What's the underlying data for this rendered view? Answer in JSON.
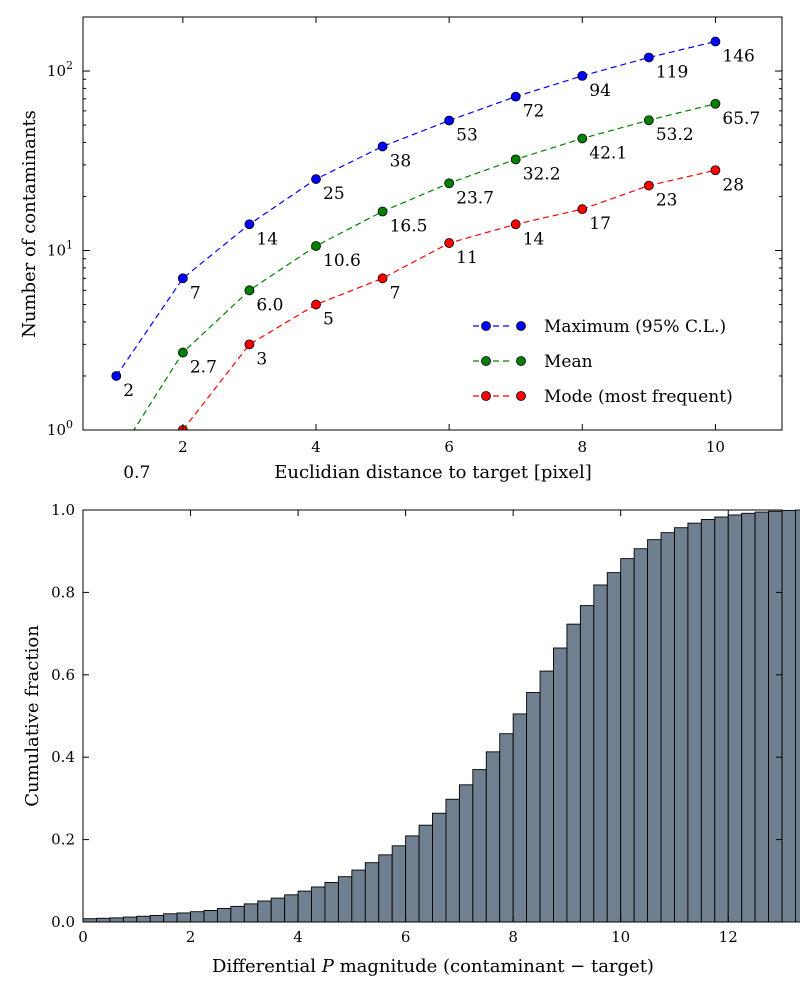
{
  "chart_data": [
    {
      "type": "line",
      "yscale": "log",
      "xlabel": "Euclidian distance to target [pixel]",
      "ylabel": "Number of contaminants",
      "xlim": [
        0.5,
        11
      ],
      "ylim": [
        1,
        200
      ],
      "xticks": [
        2,
        4,
        6,
        8,
        10
      ],
      "xtick_labels": [
        "2",
        "4",
        "6",
        "8",
        "10"
      ],
      "yticks": [
        1,
        10,
        100
      ],
      "ytick_bases": [
        "10",
        "10",
        "10"
      ],
      "ytick_exps": [
        "0",
        "1",
        "2"
      ],
      "legend_position": "lower-right",
      "series": [
        {
          "name": "Maximum (95% C.L.)",
          "color": "#0000ff",
          "x": [
            1,
            2,
            3,
            4,
            5,
            6,
            7,
            8,
            9,
            10
          ],
          "values": [
            2,
            7,
            14,
            25,
            38,
            53,
            72,
            94,
            119,
            146
          ],
          "labels": [
            "2",
            "7",
            "14",
            "25",
            "38",
            "53",
            "72",
            "94",
            "119",
            "146"
          ]
        },
        {
          "name": "Mean",
          "color": "#008000",
          "x": [
            1,
            2,
            3,
            4,
            5,
            6,
            7,
            8,
            9,
            10
          ],
          "values": [
            0.7,
            2.7,
            6.0,
            10.6,
            16.5,
            23.7,
            32.2,
            42.1,
            53.2,
            65.7
          ],
          "labels": [
            "0.7",
            "2.7",
            "6.0",
            "10.6",
            "16.5",
            "23.7",
            "32.2",
            "42.1",
            "53.2",
            "65.7"
          ]
        },
        {
          "name": "Mode (most frequent)",
          "color": "#ff0000",
          "x": [
            2,
            3,
            4,
            5,
            6,
            7,
            8,
            9,
            10
          ],
          "values": [
            1,
            3,
            5,
            7,
            11,
            14,
            17,
            23,
            28
          ],
          "labels": [
            "",
            "3",
            "5",
            "7",
            "11",
            "14",
            "17",
            "23",
            "28"
          ]
        }
      ]
    },
    {
      "type": "bar",
      "subtype": "cumulative-histogram",
      "xlabel": "Differential P magnitude (contaminant − target)",
      "xlabel_parts": [
        "Differential ",
        "P",
        " magnitude (contaminant − target)"
      ],
      "ylabel": "Cumulative fraction",
      "xlim": [
        0,
        13
      ],
      "ylim": [
        0,
        1.0
      ],
      "xticks": [
        0,
        2,
        4,
        6,
        8,
        10,
        12
      ],
      "xtick_labels": [
        "0",
        "2",
        "4",
        "6",
        "8",
        "10",
        "12"
      ],
      "yticks": [
        0,
        0.2,
        0.4,
        0.6,
        0.8,
        1.0
      ],
      "ytick_labels": [
        "0.0",
        "0.2",
        "0.4",
        "0.6",
        "0.8",
        "1.0"
      ],
      "bin_width": 0.25,
      "bar_color": "#708090",
      "values": [
        0.008,
        0.009,
        0.01,
        0.012,
        0.014,
        0.016,
        0.02,
        0.022,
        0.025,
        0.028,
        0.033,
        0.038,
        0.044,
        0.051,
        0.058,
        0.066,
        0.075,
        0.085,
        0.096,
        0.11,
        0.126,
        0.144,
        0.163,
        0.185,
        0.209,
        0.235,
        0.264,
        0.298,
        0.333,
        0.37,
        0.413,
        0.457,
        0.505,
        0.557,
        0.609,
        0.665,
        0.723,
        0.768,
        0.818,
        0.848,
        0.882,
        0.906,
        0.928,
        0.945,
        0.957,
        0.968,
        0.977,
        0.983,
        0.988,
        0.992,
        0.995,
        0.997,
        0.999,
        1.0
      ]
    }
  ]
}
